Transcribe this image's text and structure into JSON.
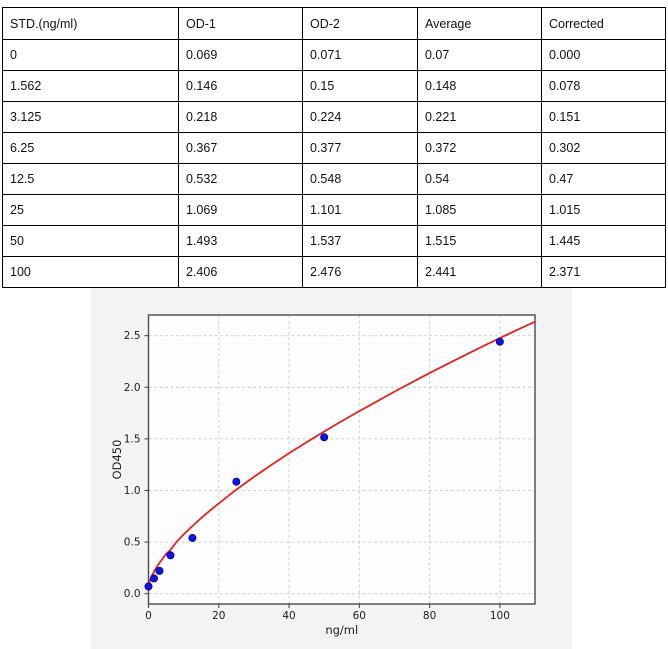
{
  "table": {
    "columns": [
      "STD.(ng/ml)",
      "OD-1",
      "OD-2",
      "Average",
      "Corrected"
    ],
    "rows": [
      [
        "0",
        "0.069",
        "0.071",
        "0.07",
        "0.000"
      ],
      [
        "1.562",
        "0.146",
        "0.15",
        "0.148",
        "0.078"
      ],
      [
        "3.125",
        "0.218",
        "0.224",
        "0.221",
        "0.151"
      ],
      [
        "6.25",
        "0.367",
        "0.377",
        "0.372",
        "0.302"
      ],
      [
        "12.5",
        "0.532",
        "0.548",
        "0.54",
        "0.47"
      ],
      [
        "25",
        "1.069",
        "1.101",
        "1.085",
        "1.015"
      ],
      [
        "50",
        "1.493",
        "1.537",
        "1.515",
        "1.445"
      ],
      [
        "100",
        "2.406",
        "2.476",
        "2.441",
        "2.371"
      ]
    ]
  },
  "chart_data": {
    "type": "scatter",
    "title": "",
    "xlabel": "ng/ml",
    "ylabel": "OD450",
    "xlim": [
      0,
      110
    ],
    "ylim": [
      -0.1,
      2.7
    ],
    "xticks": [
      0,
      20,
      40,
      60,
      80,
      100
    ],
    "xtick_labels": [
      "0",
      "20",
      "40",
      "60",
      "80",
      "100"
    ],
    "yticks": [
      0.0,
      0.5,
      1.0,
      1.5,
      2.0,
      2.5
    ],
    "ytick_labels": [
      "0.0",
      "0.5",
      "1.0",
      "1.5",
      "2.0",
      "2.5"
    ],
    "grid": true,
    "legend": "none",
    "colors": {
      "figure_background": "#f3f3f3",
      "plot_background": "#fdfdfd",
      "spine": "#4a4a4a",
      "gridline": "#cccccc",
      "point_fill": "#1414e0",
      "point_edge": "#0000a0",
      "curve": "#e32222"
    },
    "series": [
      {
        "name": "standard-points",
        "type": "scatter",
        "x": [
          0,
          1.562,
          3.125,
          6.25,
          12.5,
          25,
          50,
          100
        ],
        "y": [
          0.07,
          0.148,
          0.221,
          0.372,
          0.54,
          1.085,
          1.515,
          2.441
        ]
      },
      {
        "name": "fitted-curve",
        "type": "line",
        "x": [
          0,
          0.5,
          1,
          1.5,
          2,
          3,
          4,
          5,
          6.25,
          8,
          10,
          12.5,
          15,
          17.5,
          20,
          25,
          30,
          35,
          40,
          45,
          50,
          55,
          60,
          65,
          70,
          75,
          80,
          85,
          90,
          95,
          100,
          105,
          110
        ],
        "y": [
          0.07,
          0.136,
          0.175,
          0.208,
          0.238,
          0.292,
          0.34,
          0.384,
          0.425,
          0.502,
          0.573,
          0.655,
          0.733,
          0.805,
          0.875,
          1.008,
          1.131,
          1.248,
          1.36,
          1.468,
          1.571,
          1.672,
          1.769,
          1.863,
          1.958,
          2.048,
          2.137,
          2.224,
          2.31,
          2.394,
          2.477,
          2.557,
          2.635
        ]
      }
    ]
  }
}
